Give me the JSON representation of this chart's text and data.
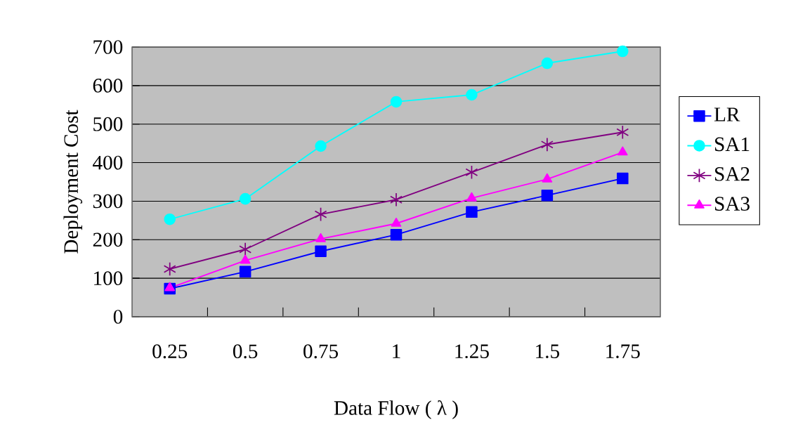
{
  "chart_data": {
    "type": "line",
    "xlabel": "Data Flow ( λ )",
    "ylabel": "Deployment Cost",
    "categories": [
      "0.25",
      "0.5",
      "0.75",
      "1",
      "1.25",
      "1.5",
      "1.75"
    ],
    "series": [
      {
        "name": "LR",
        "color": "#0000ff",
        "marker": "square",
        "values": [
          73,
          117,
          170,
          213,
          272,
          315,
          359
        ]
      },
      {
        "name": "SA1",
        "color": "#00ffff",
        "marker": "circle",
        "values": [
          253,
          306,
          443,
          558,
          576,
          658,
          689
        ]
      },
      {
        "name": "SA2",
        "color": "#800080",
        "marker": "cross",
        "values": [
          124,
          175,
          266,
          304,
          375,
          447,
          479
        ]
      },
      {
        "name": "SA3",
        "color": "#ff00ff",
        "marker": "triangle",
        "values": [
          75,
          146,
          202,
          242,
          308,
          357,
          427
        ]
      }
    ],
    "ylim": [
      0,
      700
    ],
    "yticks": [
      0,
      100,
      200,
      300,
      400,
      500,
      600,
      700
    ],
    "grid": "y",
    "legend": "right",
    "line_style": "solid"
  }
}
